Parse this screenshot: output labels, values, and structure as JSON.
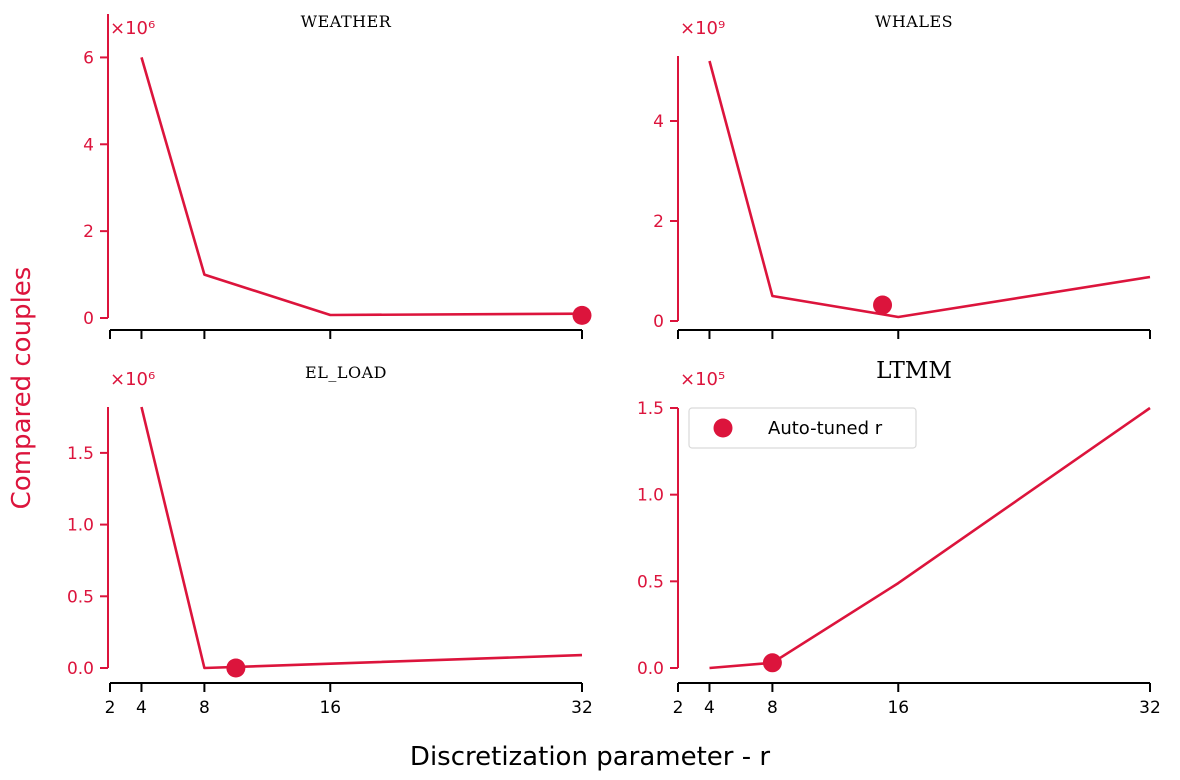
{
  "figure": {
    "ylabel": "Compared couples",
    "xlabel": "Discretization parameter - r",
    "legend": {
      "label": "Auto-tuned r",
      "position": "upper-left of LTMM panel"
    },
    "colors": {
      "accent": "#dc143c",
      "axis_x": "#000000"
    }
  },
  "chart_data": [
    {
      "type": "line",
      "title": "WEATHER",
      "multiplier_label": "×10⁶",
      "x": [
        4,
        8,
        16,
        32
      ],
      "series": [
        {
          "values": [
            6.0,
            1.0,
            0.07,
            0.1
          ]
        }
      ],
      "auto_tuned": {
        "x": 32,
        "y": 0.06
      },
      "ylim": [
        0,
        7
      ],
      "yticks": [
        0,
        2,
        4,
        6
      ],
      "ytick_labels": [
        "0",
        "2",
        "4",
        "6"
      ],
      "xlim": [
        2,
        32
      ],
      "xticks": [
        2,
        4,
        8,
        16,
        32
      ],
      "xtick_labels": [],
      "grid": false
    },
    {
      "type": "line",
      "title": "WHALES",
      "multiplier_label": "×10⁹",
      "x": [
        4,
        8,
        16,
        32
      ],
      "series": [
        {
          "values": [
            5.2,
            0.5,
            0.08,
            0.88
          ]
        }
      ],
      "auto_tuned": {
        "x": 15,
        "y": 0.32
      },
      "ylim": [
        0,
        5.3
      ],
      "yticks": [
        0,
        2,
        4
      ],
      "ytick_labels": [
        "0",
        "2",
        "4"
      ],
      "xlim": [
        2,
        32
      ],
      "xticks": [
        2,
        4,
        8,
        16,
        32
      ],
      "xtick_labels": [],
      "grid": false
    },
    {
      "type": "line",
      "title": "EL_LOAD",
      "multiplier_label": "×10⁶",
      "x": [
        4,
        8,
        16,
        32
      ],
      "series": [
        {
          "values": [
            1.82,
            0.0,
            0.03,
            0.09
          ]
        }
      ],
      "auto_tuned": {
        "x": 10,
        "y": 0.0
      },
      "ylim": [
        0,
        1.82
      ],
      "yticks": [
        0.0,
        0.5,
        1.0,
        1.5
      ],
      "ytick_labels": [
        "0.0",
        "0.5",
        "1.0",
        "1.5"
      ],
      "xlim": [
        2,
        32
      ],
      "xticks": [
        2,
        4,
        8,
        16,
        32
      ],
      "xtick_labels": [
        "2",
        "4",
        "8",
        "16",
        "32"
      ],
      "grid": false
    },
    {
      "type": "line",
      "title": "LTMM",
      "multiplier_label": "×10⁵",
      "x": [
        4,
        8,
        16,
        32
      ],
      "series": [
        {
          "values": [
            0.0,
            0.03,
            0.49,
            1.5
          ]
        }
      ],
      "auto_tuned": {
        "x": 8,
        "y": 0.03
      },
      "ylim": [
        0,
        1.5
      ],
      "yticks": [
        0.0,
        0.5,
        1.0,
        1.5
      ],
      "ytick_labels": [
        "0.0",
        "0.5",
        "1.0",
        "1.5"
      ],
      "xlim": [
        2,
        32
      ],
      "xticks": [
        2,
        4,
        8,
        16,
        32
      ],
      "xtick_labels": [
        "2",
        "4",
        "8",
        "16",
        "32"
      ],
      "grid": false
    }
  ]
}
